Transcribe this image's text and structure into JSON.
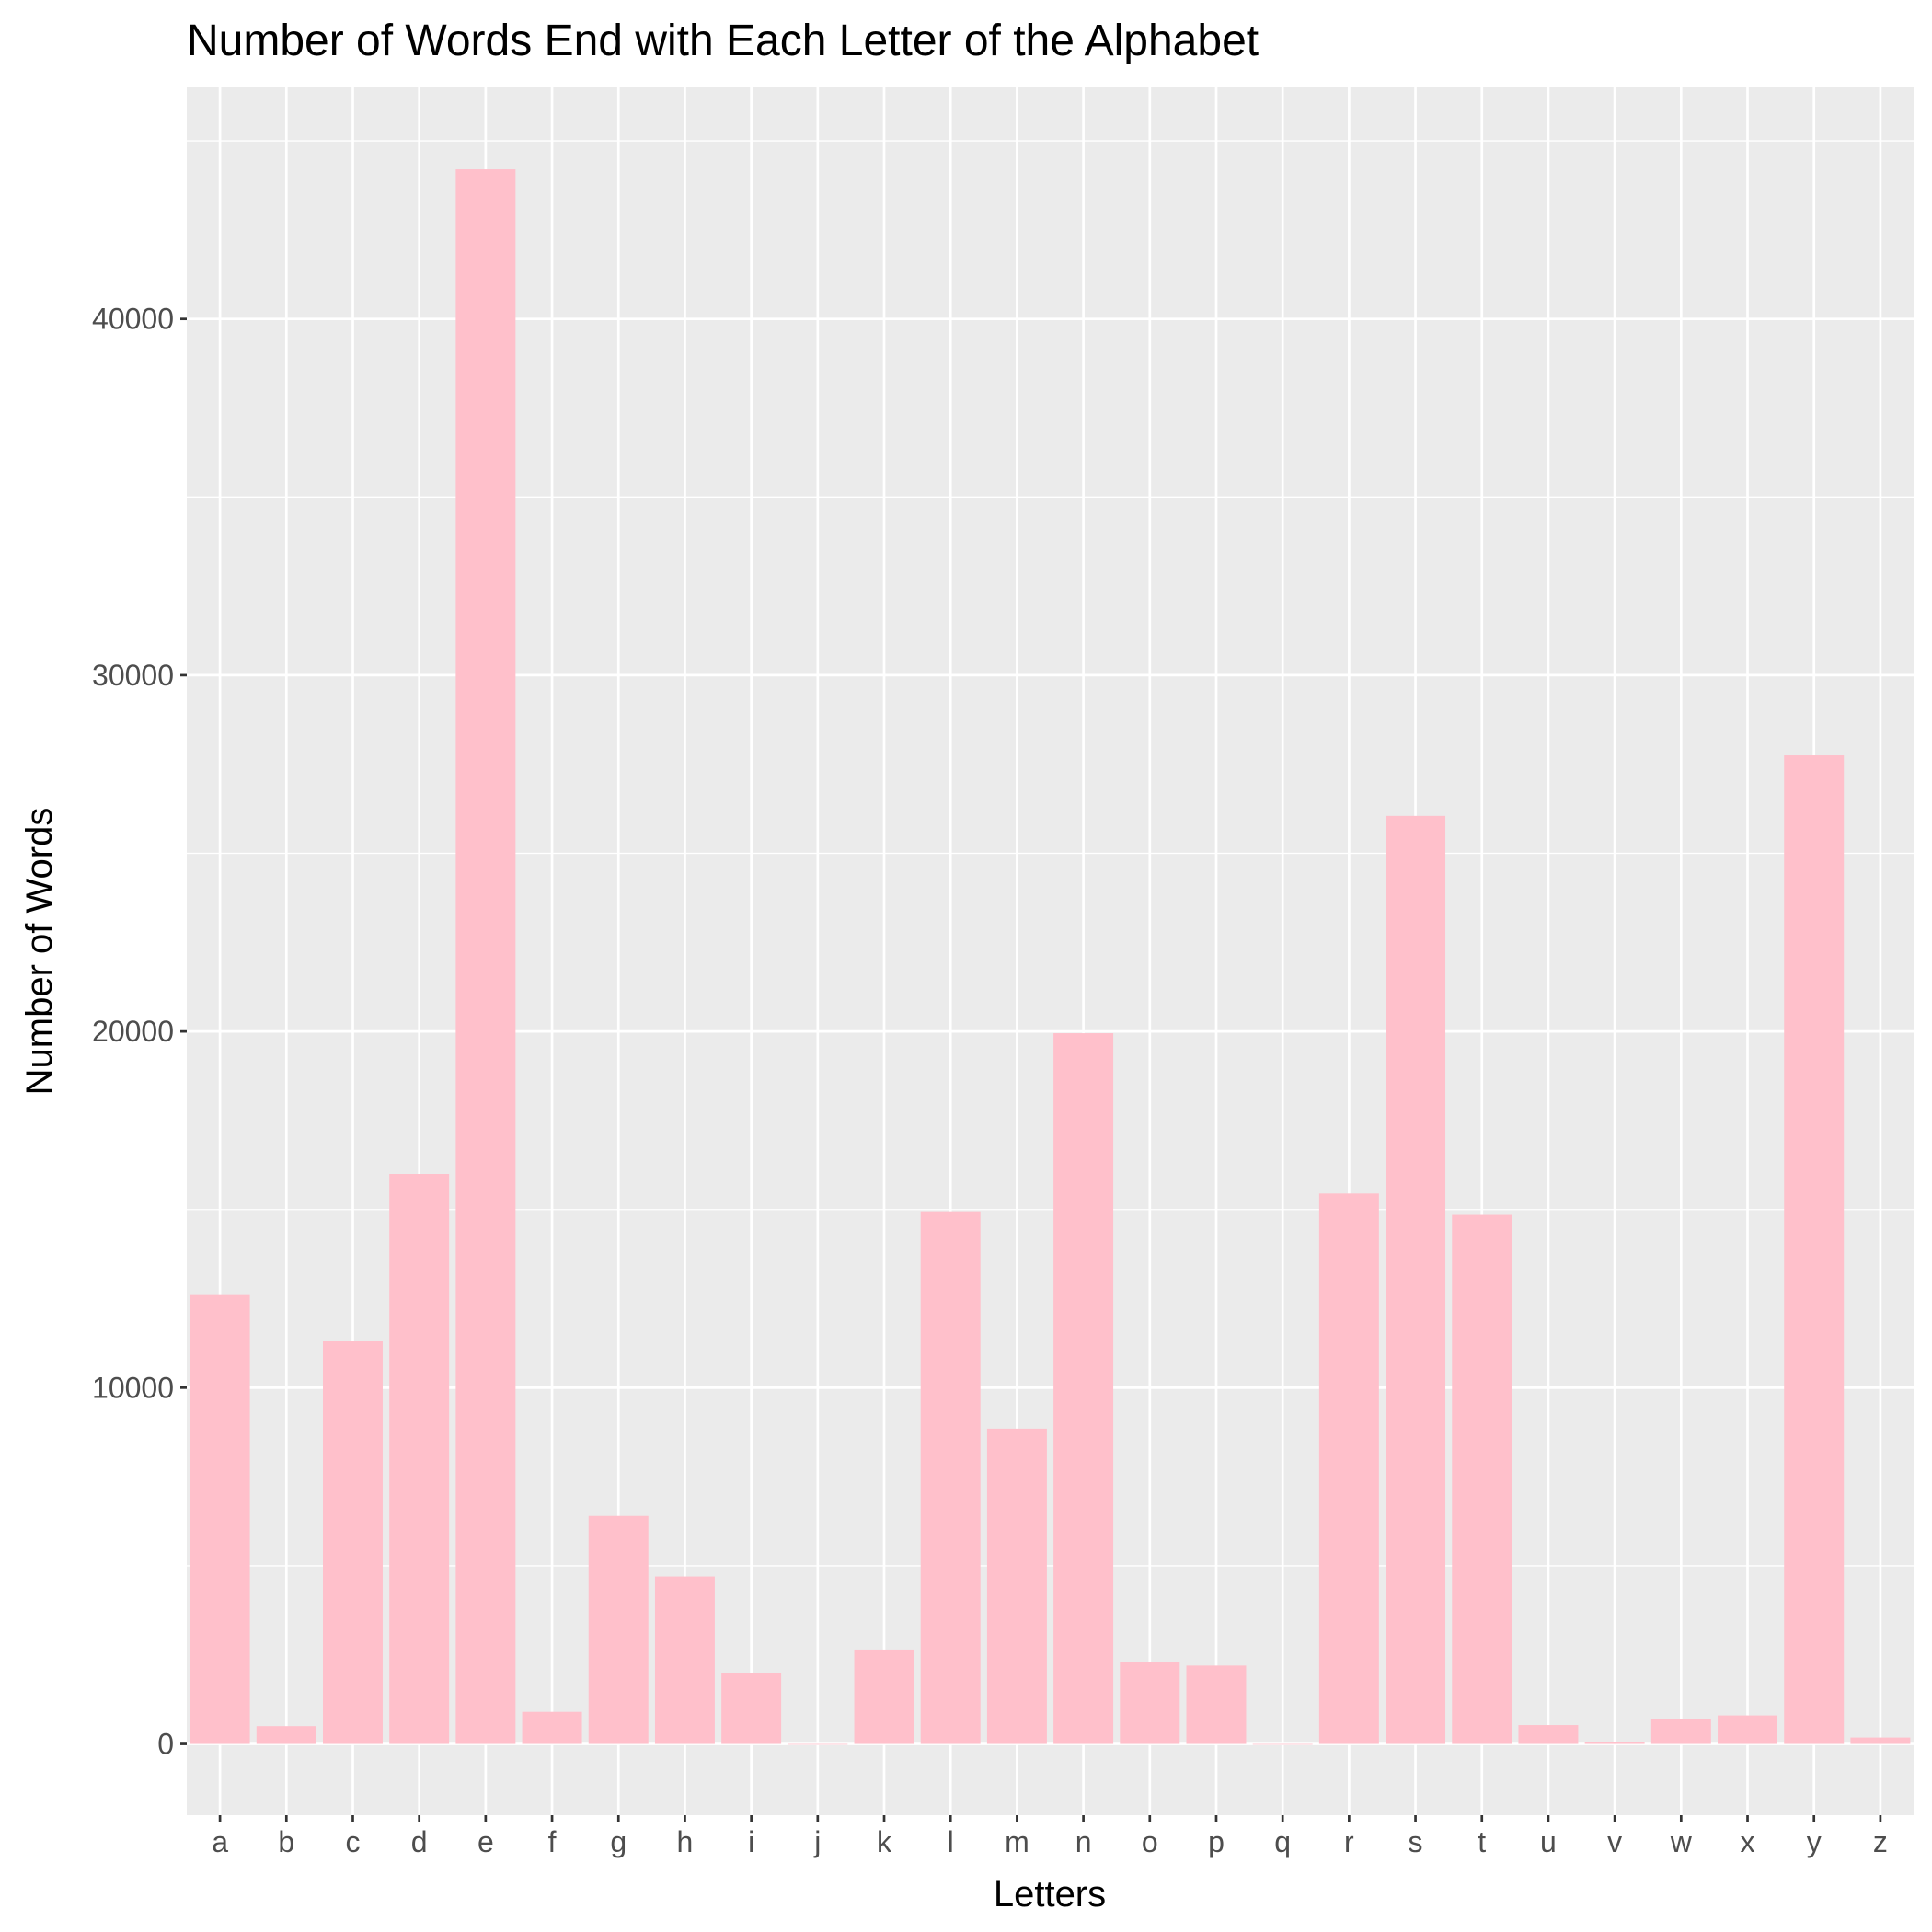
{
  "chart_data": {
    "type": "bar",
    "title": "Number of Words End with Each Letter of the Alphabet",
    "xlabel": "Letters",
    "ylabel": "Number of Words",
    "categories": [
      "a",
      "b",
      "c",
      "d",
      "e",
      "f",
      "g",
      "h",
      "i",
      "j",
      "k",
      "l",
      "m",
      "n",
      "o",
      "p",
      "q",
      "r",
      "s",
      "t",
      "u",
      "v",
      "w",
      "x",
      "y",
      "z"
    ],
    "values": [
      12600,
      500,
      11300,
      16000,
      44200,
      900,
      6400,
      4700,
      2000,
      0,
      2650,
      14950,
      8850,
      19950,
      2300,
      2200,
      0,
      15450,
      26050,
      14850,
      530,
      60,
      700,
      800,
      27750,
      180
    ],
    "yticks": [
      0,
      10000,
      20000,
      30000,
      40000
    ],
    "ylim": [
      -2000,
      46500
    ],
    "grid": true,
    "bar_color": "#FFC0CB",
    "panel_background": "#EBEBEB",
    "grid_color": "#FFFFFF"
  }
}
